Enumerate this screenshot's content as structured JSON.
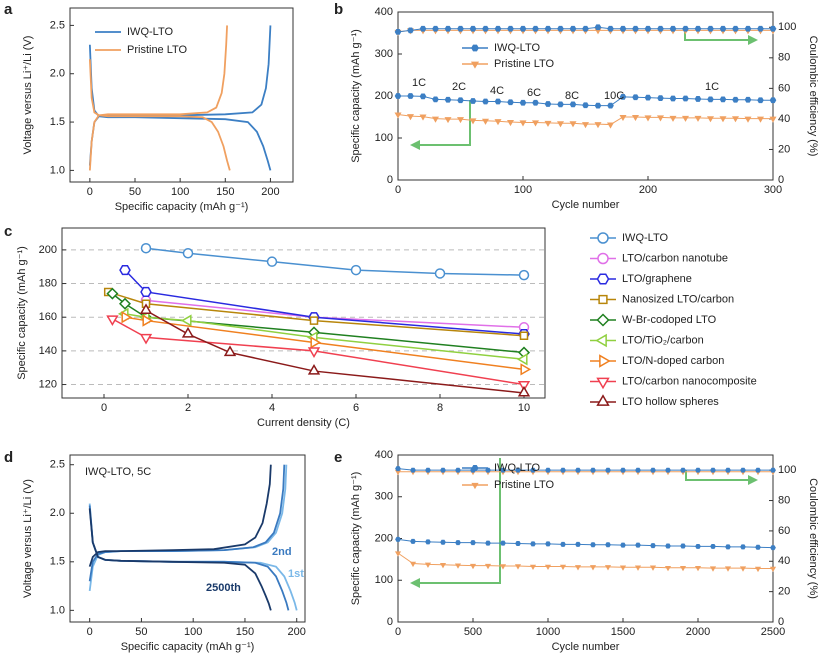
{
  "chart_data": [
    {
      "panel": "a",
      "type": "line",
      "xlabel": "Specific capacity (mAh g⁻¹)",
      "ylabel": "Voltage versus Li⁺/Li (V)",
      "xlim": [
        -22,
        225
      ],
      "ylim": [
        0.88,
        2.68
      ],
      "xticks": [
        0,
        50,
        100,
        150,
        200
      ],
      "yticks": [
        {
          "value": 1,
          "label": "1.0"
        },
        1.5,
        {
          "value": 2,
          "label": "2.0"
        },
        2.5
      ],
      "legend": "upper left",
      "series": [
        {
          "name": "IWQ-LTO",
          "color": "#3c7fc4",
          "x": [
            0,
            2,
            5,
            10,
            20,
            50,
            100,
            150,
            175,
            185,
            192,
            197,
            200,
            null,
            0,
            2,
            5,
            10,
            20,
            50,
            100,
            150,
            180,
            190,
            195,
            198,
            200
          ],
          "values": [
            2.3,
            1.85,
            1.62,
            1.56,
            1.55,
            1.55,
            1.54,
            1.53,
            1.5,
            1.4,
            1.25,
            1.1,
            1.0,
            null,
            1.05,
            1.3,
            1.5,
            1.56,
            1.57,
            1.57,
            1.57,
            1.58,
            1.6,
            1.68,
            1.85,
            2.1,
            2.5
          ]
        },
        {
          "name": "Pristine LTO",
          "color": "#f0a060",
          "x": [
            0,
            2,
            5,
            10,
            20,
            50,
            100,
            125,
            135,
            142,
            148,
            152,
            155,
            null,
            0,
            2,
            5,
            10,
            20,
            50,
            100,
            130,
            140,
            146,
            149,
            151,
            152
          ],
          "values": [
            2.15,
            1.75,
            1.6,
            1.57,
            1.56,
            1.56,
            1.56,
            1.55,
            1.5,
            1.4,
            1.25,
            1.1,
            1.0,
            null,
            1.0,
            1.3,
            1.5,
            1.57,
            1.58,
            1.58,
            1.58,
            1.6,
            1.65,
            1.8,
            2.0,
            2.3,
            2.5
          ]
        }
      ]
    },
    {
      "panel": "b",
      "type": "line",
      "xlabel": "Cycle number",
      "ylabel": "Specific capacity (mAh g⁻¹)",
      "y2label": "Coulombic efficiency (%)",
      "xlim": [
        0,
        300
      ],
      "ylim": [
        0,
        400
      ],
      "y2lim": [
        0,
        110
      ],
      "xticks": [
        0,
        100,
        200,
        300
      ],
      "yticks": [
        0,
        100,
        200,
        300,
        400
      ],
      "y2ticks": [
        0,
        20,
        40,
        60,
        80,
        100
      ],
      "legend": "upper left",
      "annotations": [
        "1C",
        "2C",
        "4C",
        "6C",
        "8C",
        "10C",
        "1C"
      ],
      "x": [
        0,
        10,
        20,
        30,
        40,
        50,
        60,
        70,
        80,
        90,
        100,
        110,
        120,
        130,
        140,
        150,
        160,
        170,
        180,
        190,
        200,
        210,
        220,
        230,
        240,
        250,
        260,
        270,
        280,
        290,
        300
      ],
      "series": [
        {
          "name": "IWQ-LTO",
          "color": "#3c7fc4",
          "marker": "hexagon",
          "values": [
            200,
            200,
            199,
            192,
            191,
            190,
            188,
            187,
            187,
            185,
            184,
            184,
            181,
            180,
            180,
            178,
            177,
            177,
            198,
            197,
            196,
            195,
            194,
            194,
            193,
            192,
            192,
            191,
            191,
            190,
            190
          ]
        },
        {
          "name": "Pristine LTO",
          "color": "#f0a060",
          "marker": "triangle-down",
          "values": [
            156,
            152,
            151,
            146,
            145,
            145,
            142,
            141,
            140,
            138,
            137,
            137,
            136,
            135,
            135,
            133,
            133,
            132,
            150,
            150,
            149,
            149,
            148,
            148,
            148,
            147,
            147,
            147,
            146,
            146,
            146
          ]
        },
        {
          "color": "#f0a060",
          "marker": "triangle-down",
          "axis": "y2",
          "values": [
            97,
            98,
            98,
            98,
            98,
            98,
            98,
            98,
            98,
            98,
            98,
            98,
            98,
            98,
            98,
            98,
            98,
            98,
            98,
            98,
            98,
            98,
            98,
            98,
            98,
            98,
            98,
            98,
            98,
            98,
            98
          ]
        },
        {
          "color": "#3c7fc4",
          "marker": "hexagon",
          "axis": "y2",
          "values": [
            97,
            98,
            99,
            99,
            99,
            99,
            99,
            99,
            99,
            99,
            99,
            99,
            99,
            99,
            99,
            99,
            100,
            99,
            99,
            99,
            99,
            99,
            99,
            99,
            99,
            99,
            99,
            99,
            99,
            99,
            99
          ]
        }
      ]
    },
    {
      "panel": "c",
      "type": "line",
      "xlabel": "Current density (C)",
      "ylabel": "Specific capacity (mAh g⁻¹)",
      "xlim": [
        -1,
        10.5
      ],
      "ylim": [
        112,
        213
      ],
      "xticks": [
        0,
        2,
        4,
        6,
        8,
        10
      ],
      "yticks": [
        120,
        140,
        160,
        180,
        200
      ],
      "grid": true,
      "legend": "outside right",
      "series": [
        {
          "name": "IWQ-LTO",
          "color": "#4a90d0",
          "marker": "circle",
          "x": [
            1,
            2,
            4,
            6,
            8,
            10
          ],
          "values": [
            201,
            198,
            193,
            188,
            186,
            185
          ]
        },
        {
          "name": "LTO/carbon nanotube",
          "color": "#e070e8",
          "marker": "circle",
          "x": [
            1,
            5,
            10
          ],
          "values": [
            170,
            160,
            154
          ]
        },
        {
          "name": "LTO/graphene",
          "color": "#2a2ae0",
          "marker": "hexagon",
          "x": [
            0.5,
            1,
            5,
            10
          ],
          "values": [
            188,
            175,
            160,
            150
          ]
        },
        {
          "name": "Nanosized LTO/carbon",
          "color": "#b8860b",
          "marker": "square",
          "x": [
            0.1,
            1,
            5,
            10
          ],
          "values": [
            175,
            168,
            158,
            149
          ]
        },
        {
          "name": "W-Br-codoped LTO",
          "color": "#208020",
          "marker": "diamond",
          "x": [
            0.2,
            0.5,
            1,
            5,
            10
          ],
          "values": [
            174,
            168,
            160,
            151,
            139
          ]
        },
        {
          "name": "LTO/TiO₂/carbon",
          "color": "#90d040",
          "marker": "triangle-left",
          "x": [
            0.5,
            1,
            2,
            5,
            10
          ],
          "values": [
            162,
            160,
            158,
            148,
            135
          ]
        },
        {
          "name": "LTO/N-doped carbon",
          "color": "#f08020",
          "marker": "triangle-right",
          "x": [
            0.5,
            1,
            5,
            10
          ],
          "values": [
            160,
            158,
            145,
            129
          ]
        },
        {
          "name": "LTO/carbon nanocomposite",
          "color": "#f04050",
          "marker": "triangle-down",
          "x": [
            0.2,
            1,
            5,
            10
          ],
          "values": [
            159,
            148,
            140,
            120
          ]
        },
        {
          "name": "LTO hollow spheres",
          "color": "#8b1a1a",
          "marker": "triangle-up",
          "x": [
            1,
            2,
            3,
            5,
            10
          ],
          "values": [
            164,
            150,
            139,
            128,
            115
          ]
        }
      ]
    },
    {
      "panel": "d",
      "type": "line",
      "xlabel": "Specific capacity (mAh g⁻¹)",
      "ylabel": "Voltage versus Li⁺/Li (V)",
      "annotation": "IWQ-LTO, 5C",
      "xlim": [
        -19,
        208
      ],
      "ylim": [
        0.88,
        2.6
      ],
      "xticks": [
        0,
        50,
        100,
        150,
        200
      ],
      "yticks": [
        {
          "value": 1,
          "label": "1.0"
        },
        1.5,
        {
          "value": 2,
          "label": "2.0"
        },
        2.5
      ],
      "series": [
        {
          "name": "1st",
          "color": "#7ab8e8",
          "x": [
            0,
            3,
            8,
            15,
            30,
            80,
            130,
            165,
            180,
            188,
            194,
            198,
            200,
            null,
            0,
            3,
            8,
            15,
            30,
            80,
            130,
            160,
            172,
            180,
            186,
            189,
            190
          ],
          "values": [
            2.1,
            1.7,
            1.55,
            1.52,
            1.51,
            1.5,
            1.5,
            1.49,
            1.45,
            1.35,
            1.2,
            1.08,
            1.0,
            null,
            1.2,
            1.45,
            1.57,
            1.6,
            1.61,
            1.61,
            1.62,
            1.65,
            1.7,
            1.8,
            2.0,
            2.25,
            2.5
          ]
        },
        {
          "name": "2nd",
          "color": "#3a7ac0",
          "x": [
            0,
            3,
            8,
            15,
            30,
            80,
            130,
            160,
            172,
            180,
            186,
            190,
            192,
            null,
            0,
            3,
            8,
            15,
            30,
            80,
            130,
            158,
            170,
            178,
            184,
            187,
            188
          ],
          "values": [
            2.08,
            1.7,
            1.55,
            1.52,
            1.51,
            1.5,
            1.5,
            1.49,
            1.45,
            1.35,
            1.2,
            1.08,
            1.0,
            null,
            1.3,
            1.5,
            1.58,
            1.6,
            1.61,
            1.61,
            1.62,
            1.65,
            1.7,
            1.8,
            2.0,
            2.25,
            2.5
          ]
        },
        {
          "name": "2500th",
          "color": "#1a3a6a",
          "x": [
            0,
            3,
            8,
            15,
            30,
            80,
            130,
            150,
            160,
            166,
            170,
            173,
            175,
            null,
            0,
            3,
            8,
            15,
            30,
            80,
            120,
            150,
            160,
            167,
            171,
            174,
            175
          ],
          "values": [
            2.05,
            1.7,
            1.55,
            1.52,
            1.51,
            1.5,
            1.49,
            1.47,
            1.38,
            1.25,
            1.15,
            1.07,
            1.0,
            null,
            1.45,
            1.55,
            1.6,
            1.61,
            1.61,
            1.62,
            1.63,
            1.68,
            1.75,
            1.9,
            2.1,
            2.3,
            2.5
          ]
        }
      ]
    },
    {
      "panel": "e",
      "type": "line",
      "xlabel": "Cycle number",
      "ylabel": "Specific capacity (mAh g⁻¹)",
      "y2label": "Coulombic efficiency (%)",
      "xlim": [
        0,
        2500
      ],
      "ylim": [
        0,
        400
      ],
      "y2lim": [
        0,
        110
      ],
      "xticks": [
        0,
        500,
        1000,
        1500,
        2000,
        2500
      ],
      "yticks": [
        0,
        100,
        200,
        300,
        400
      ],
      "y2ticks": [
        0,
        20,
        40,
        60,
        80,
        100
      ],
      "legend": "upper left",
      "x": [
        0,
        100,
        200,
        300,
        400,
        500,
        600,
        700,
        800,
        900,
        1000,
        1100,
        1200,
        1300,
        1400,
        1500,
        1600,
        1700,
        1800,
        1900,
        2000,
        2100,
        2200,
        2300,
        2400,
        2500
      ],
      "series": [
        {
          "name": "IWQ-LTO",
          "color": "#3c7fc4",
          "marker": "hexagon",
          "values": [
            198,
            193,
            192,
            191,
            190,
            190,
            189,
            189,
            188,
            187,
            187,
            186,
            186,
            185,
            185,
            184,
            184,
            183,
            182,
            182,
            181,
            181,
            180,
            180,
            179,
            178
          ]
        },
        {
          "name": "Pristine LTO",
          "color": "#f0a060",
          "marker": "triangle-down",
          "values": [
            165,
            140,
            138,
            137,
            136,
            135,
            135,
            134,
            134,
            133,
            133,
            133,
            132,
            132,
            132,
            131,
            131,
            131,
            130,
            130,
            130,
            129,
            129,
            129,
            128,
            128
          ]
        },
        {
          "color": "#f0a060",
          "marker": "triangle-down",
          "axis": "y2",
          "values": [
            99,
            99,
            99,
            99,
            99,
            99,
            99,
            99,
            99,
            99,
            99,
            99,
            99,
            99,
            99,
            99,
            99,
            99,
            99,
            99,
            99,
            99,
            99,
            99,
            99,
            99
          ]
        },
        {
          "color": "#3c7fc4",
          "marker": "hexagon",
          "axis": "y2",
          "values": [
            101,
            100,
            100,
            100,
            100,
            100,
            100,
            100,
            100,
            100,
            100,
            100,
            100,
            100,
            100,
            100,
            100,
            100,
            100,
            100,
            100,
            100,
            100,
            100,
            100,
            100
          ]
        }
      ]
    }
  ]
}
